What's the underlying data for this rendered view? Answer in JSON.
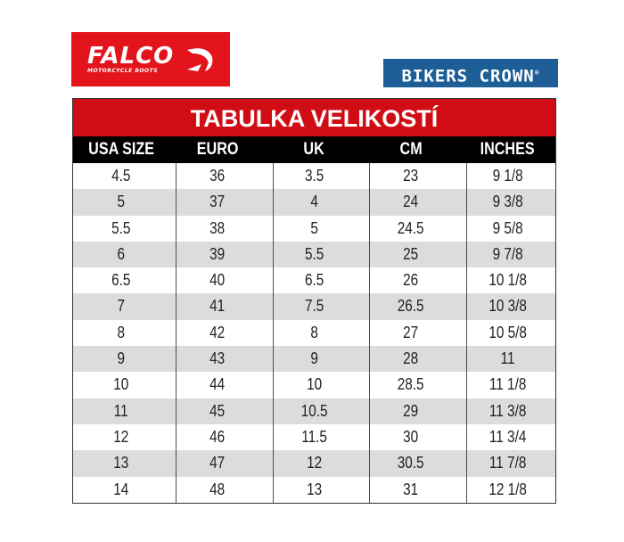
{
  "logos": {
    "falco": {
      "brand": "FALCO",
      "tagline": "MOTORCYCLE BOOTS",
      "color": "#e3141b"
    },
    "bikers_crown": {
      "text": "BIKERS CROWN",
      "mark": "®",
      "color": "#1c5e95"
    }
  },
  "table": {
    "title": "TABULKA VELIKOSTÍ",
    "headers": [
      "USA SIZE",
      "EURO",
      "UK",
      "CM",
      "INCHES"
    ],
    "rows": [
      [
        "4.5",
        "36",
        "3.5",
        "23",
        "9 1/8"
      ],
      [
        "5",
        "37",
        "4",
        "24",
        "9 3/8"
      ],
      [
        "5.5",
        "38",
        "5",
        "24.5",
        "9 5/8"
      ],
      [
        "6",
        "39",
        "5.5",
        "25",
        "9 7/8"
      ],
      [
        "6.5",
        "40",
        "6.5",
        "26",
        "10 1/8"
      ],
      [
        "7",
        "41",
        "7.5",
        "26.5",
        "10 3/8"
      ],
      [
        "8",
        "42",
        "8",
        "27",
        "10 5/8"
      ],
      [
        "9",
        "43",
        "9",
        "28",
        "11"
      ],
      [
        "10",
        "44",
        "10",
        "28.5",
        "11 1/8"
      ],
      [
        "11",
        "45",
        "10.5",
        "29",
        "11 3/8"
      ],
      [
        "12",
        "46",
        "11.5",
        "30",
        "11 3/4"
      ],
      [
        "13",
        "47",
        "12",
        "30.5",
        "11 7/8"
      ],
      [
        "14",
        "48",
        "13",
        "31",
        "12 1/8"
      ]
    ]
  }
}
